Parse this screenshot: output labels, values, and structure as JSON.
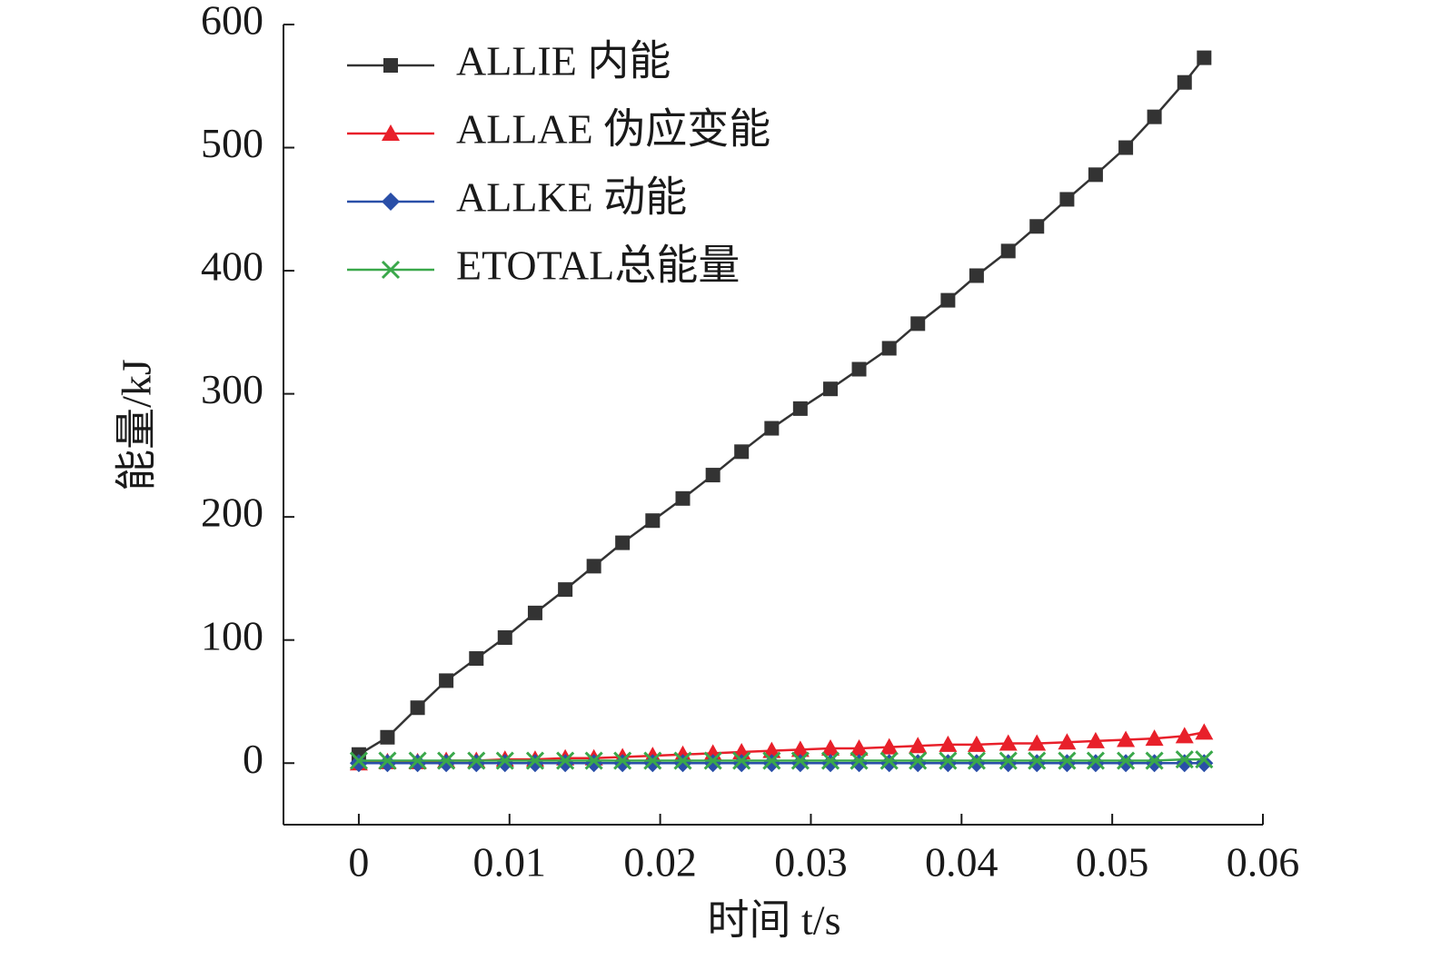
{
  "chart_data": {
    "type": "line",
    "xlabel": "时间 t/s",
    "ylabel": "能量/kJ",
    "xlim": [
      -0.005,
      0.06
    ],
    "ylim": [
      -50,
      600
    ],
    "xticks": [
      0,
      0.01,
      0.02,
      0.03,
      0.04,
      0.05,
      0.06
    ],
    "yticks": [
      0,
      100,
      200,
      300,
      400,
      500,
      600
    ],
    "grid": false,
    "legend": "upper left",
    "x": [
      0,
      0.0019,
      0.0039,
      0.0058,
      0.0078,
      0.0097,
      0.0117,
      0.0137,
      0.0156,
      0.0175,
      0.0195,
      0.0215,
      0.0235,
      0.0254,
      0.0274,
      0.0293,
      0.0313,
      0.0332,
      0.0352,
      0.0371,
      0.0391,
      0.041,
      0.0431,
      0.045,
      0.047,
      0.0489,
      0.0509,
      0.0528,
      0.0548,
      0.0561
    ],
    "series": [
      {
        "name": "ALLIE 内能",
        "color": "#333333",
        "marker": "square",
        "values": [
          7,
          21,
          45,
          67,
          85,
          102,
          122,
          141,
          160,
          179,
          197,
          215,
          234,
          253,
          272,
          288,
          304,
          320,
          337,
          357,
          376,
          396,
          416,
          436,
          458,
          478,
          500,
          525,
          553,
          573
        ]
      },
      {
        "name": "ALLAE 伪应变能",
        "color": "#e8202a",
        "marker": "triangle",
        "values": [
          0,
          1,
          1,
          2,
          2,
          3,
          3,
          4,
          4,
          5,
          6,
          7,
          8,
          9,
          10,
          11,
          12,
          12,
          13,
          14,
          15,
          15,
          16,
          16,
          17,
          18,
          19,
          20,
          22,
          25
        ]
      },
      {
        "name": "ALLKE 动能",
        "color": "#2a4fa8",
        "marker": "diamond",
        "values": [
          0,
          0,
          0,
          0,
          0,
          0,
          0,
          0,
          0,
          0,
          0,
          0,
          0,
          0,
          0,
          0,
          0,
          0,
          0,
          0,
          0,
          0,
          0,
          0,
          0,
          0,
          0,
          0,
          0,
          0
        ]
      },
      {
        "name": "ETOTAL总能量",
        "color": "#3aa84a",
        "marker": "x",
        "values": [
          2,
          2,
          2,
          2,
          2,
          2,
          2,
          2,
          2,
          2,
          2,
          2,
          2,
          2,
          2,
          2,
          2,
          2,
          2,
          2,
          2,
          2,
          2,
          2,
          2,
          2,
          2,
          2,
          3,
          3
        ]
      }
    ]
  }
}
